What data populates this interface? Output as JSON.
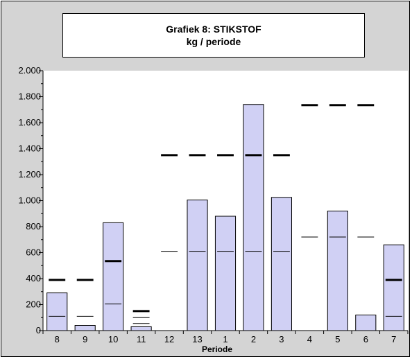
{
  "chart_data": {
    "type": "bar",
    "title": "Grafiek 8: STIKSTOF",
    "subtitle": "kg / periode",
    "xlabel": "Periode",
    "ylabel": "",
    "ylim": [
      0,
      2000
    ],
    "y_ticks": [
      0,
      200,
      400,
      600,
      800,
      1000,
      1200,
      1400,
      1600,
      1800,
      2000
    ],
    "y_tick_labels": [
      "0",
      "200",
      "400",
      "600",
      "800",
      "1.000",
      "1.200",
      "1.400",
      "1.600",
      "1.800",
      "2.000"
    ],
    "categories": [
      "8",
      "9",
      "10",
      "11",
      "12",
      "13",
      "1",
      "2",
      "3",
      "4",
      "5",
      "6",
      "7"
    ],
    "values": [
      290,
      40,
      830,
      30,
      0,
      1005,
      880,
      1740,
      1025,
      0,
      920,
      120,
      660
    ],
    "thin_marker": [
      110,
      110,
      205,
      100,
      610,
      610,
      610,
      610,
      610,
      720,
      720,
      720,
      110
    ],
    "thin_marker_2": [
      null,
      null,
      null,
      55,
      null,
      null,
      null,
      null,
      null,
      null,
      null,
      null,
      null
    ],
    "thick_marker": [
      390,
      390,
      535,
      150,
      1350,
      1350,
      1350,
      1350,
      1350,
      1735,
      1735,
      1735,
      390
    ],
    "grid": false,
    "colors": {
      "bar_fill": "#d0d0f4",
      "bar_stroke": "#000000",
      "background": "#d4d4d4",
      "plot_background": "#ffffff"
    }
  }
}
